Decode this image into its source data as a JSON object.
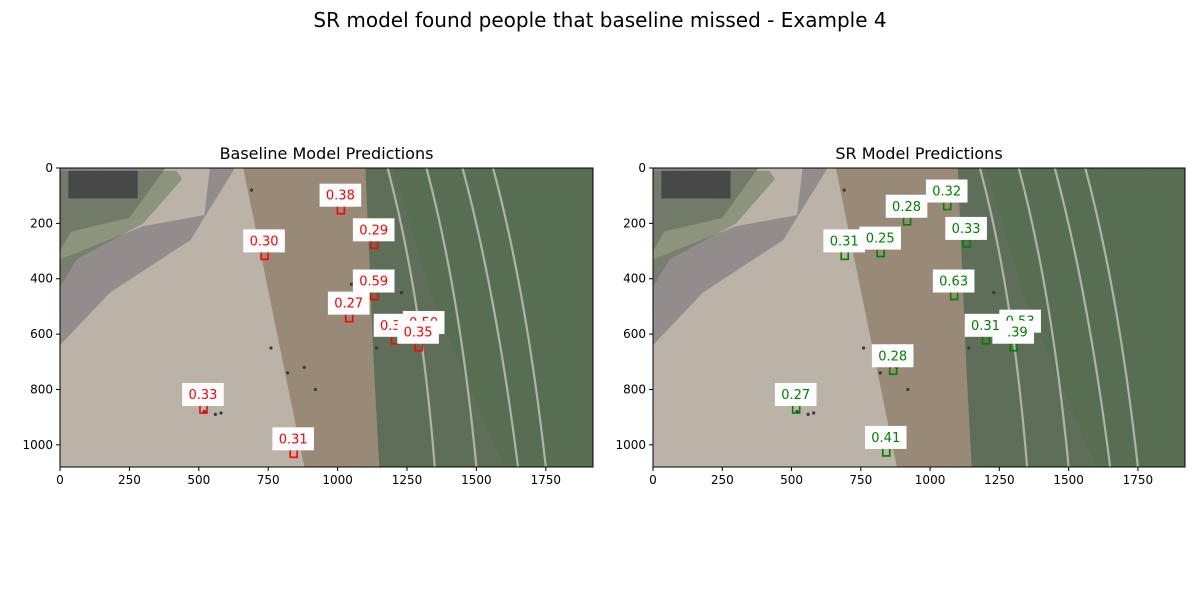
{
  "suptitle": "SR model found people that baseline missed - Example 4",
  "colors": {
    "baseline": "#ff0000",
    "sr": "#008000",
    "label_bg": "#ffffff",
    "sand": "#c8bdb0",
    "wet_sand": "#9e8c76",
    "sea": "#566a4f",
    "shadow": "#6d6973",
    "building": "#3b3b3b"
  },
  "chart_data": [
    {
      "type": "scatter",
      "title": "Baseline Model Predictions",
      "xlabel": "",
      "ylabel": "",
      "xlim": [
        0,
        1920
      ],
      "ylim": [
        1080,
        0
      ],
      "xticks": [
        0,
        250,
        500,
        750,
        1000,
        1250,
        1500,
        1750
      ],
      "yticks": [
        0,
        200,
        400,
        600,
        800,
        1000
      ],
      "grid": false,
      "background": "beach aerial photo",
      "detections": [
        {
          "x": 1010,
          "y": 100,
          "score": "0.38"
        },
        {
          "x": 735,
          "y": 265,
          "score": "0.30"
        },
        {
          "x": 1130,
          "y": 225,
          "score": "0.29"
        },
        {
          "x": 1130,
          "y": 410,
          "score": "0.59"
        },
        {
          "x": 1040,
          "y": 490,
          "score": "0.27"
        },
        {
          "x": 1205,
          "y": 570,
          "score": "0.30"
        },
        {
          "x": 1310,
          "y": 560,
          "score": "0.50"
        },
        {
          "x": 1290,
          "y": 595,
          "score": "0.35"
        },
        {
          "x": 515,
          "y": 820,
          "score": "0.33"
        },
        {
          "x": 840,
          "y": 980,
          "score": "0.31"
        }
      ]
    },
    {
      "type": "scatter",
      "title": "SR Model Predictions",
      "xlabel": "",
      "ylabel": "",
      "xlim": [
        0,
        1920
      ],
      "ylim": [
        1080,
        0
      ],
      "xticks": [
        0,
        250,
        500,
        750,
        1000,
        1250,
        1500,
        1750
      ],
      "yticks": [
        0,
        200,
        400,
        600,
        800,
        1000
      ],
      "grid": false,
      "background": "beach aerial photo",
      "detections": [
        {
          "x": 1060,
          "y": 85,
          "score": "0.32"
        },
        {
          "x": 915,
          "y": 140,
          "score": "0.28"
        },
        {
          "x": 1130,
          "y": 220,
          "score": "0.33"
        },
        {
          "x": 690,
          "y": 265,
          "score": "0.31"
        },
        {
          "x": 820,
          "y": 255,
          "score": "0.25"
        },
        {
          "x": 1085,
          "y": 410,
          "score": "0.63"
        },
        {
          "x": 1325,
          "y": 555,
          "score": "0.53"
        },
        {
          "x": 1300,
          "y": 595,
          "score": "0.39"
        },
        {
          "x": 1200,
          "y": 570,
          "score": "0.31"
        },
        {
          "x": 865,
          "y": 680,
          "score": "0.28"
        },
        {
          "x": 515,
          "y": 820,
          "score": "0.27"
        },
        {
          "x": 840,
          "y": 975,
          "score": "0.41"
        }
      ]
    }
  ]
}
